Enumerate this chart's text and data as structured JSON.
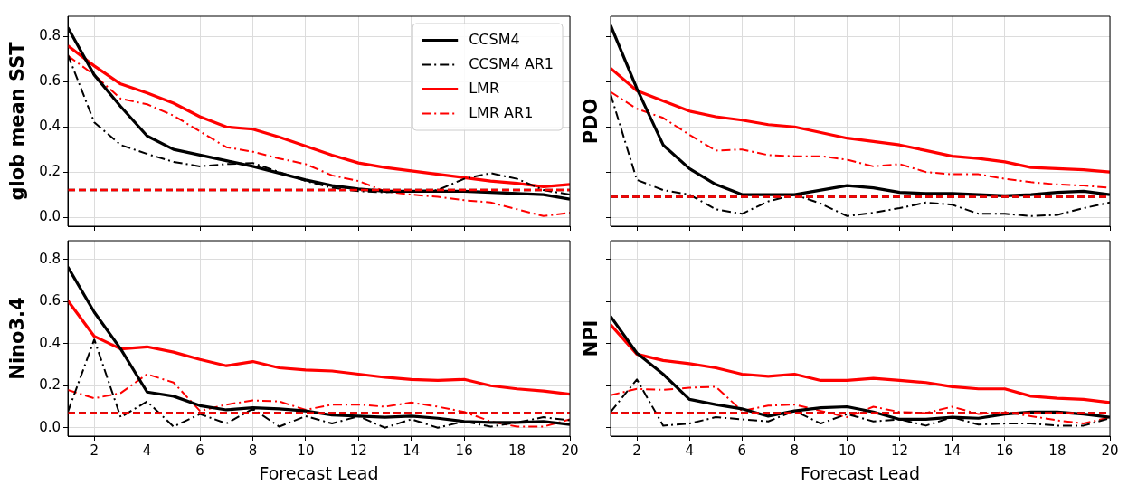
{
  "chart_data": [
    {
      "type": "line",
      "ylabel": "glob mean SST",
      "x": [
        1,
        2,
        3,
        4,
        5,
        6,
        7,
        8,
        9,
        10,
        11,
        12,
        13,
        14,
        15,
        16,
        17,
        18,
        19,
        20
      ],
      "xlim": [
        1,
        20
      ],
      "xticks": [
        2,
        4,
        6,
        8,
        10,
        12,
        14,
        16,
        18,
        20
      ],
      "ylim": [
        -0.04,
        0.89
      ],
      "yticks": [
        {
          "value": 0,
          "label": "0.0"
        },
        0.2,
        0.4,
        0.6,
        0.8
      ],
      "grid": true,
      "legend": "top right",
      "tick_labels": "y",
      "series": [
        {
          "name": "CCSM4",
          "color": "#000000",
          "line_style": "solid",
          "values": [
            0.84,
            0.63,
            0.49,
            0.36,
            0.3,
            0.275,
            0.25,
            0.225,
            0.195,
            0.165,
            0.14,
            0.125,
            0.115,
            0.115,
            0.115,
            0.115,
            0.11,
            0.105,
            0.1,
            0.08
          ]
        },
        {
          "name": "CCSM4 AR1",
          "color": "#000000",
          "line_style": "dashdot",
          "values": [
            0.72,
            0.42,
            0.32,
            0.28,
            0.245,
            0.225,
            0.235,
            0.24,
            0.2,
            0.16,
            0.13,
            0.115,
            0.11,
            0.115,
            0.12,
            0.17,
            0.195,
            0.17,
            0.12,
            0.1
          ]
        },
        {
          "name": "LMR",
          "color": "#ff0000",
          "line_style": "solid",
          "values": [
            0.76,
            0.67,
            0.59,
            0.55,
            0.505,
            0.445,
            0.4,
            0.39,
            0.355,
            0.315,
            0.275,
            0.24,
            0.22,
            0.205,
            0.19,
            0.175,
            0.16,
            0.15,
            0.135,
            0.145
          ]
        },
        {
          "name": "LMR AR1",
          "color": "#ff0000",
          "line_style": "dashdot",
          "values": [
            0.715,
            0.63,
            0.525,
            0.5,
            0.45,
            0.38,
            0.31,
            0.29,
            0.26,
            0.235,
            0.185,
            0.16,
            0.115,
            0.1,
            0.09,
            0.075,
            0.065,
            0.035,
            0.005,
            0.02
          ]
        }
      ],
      "ref_lines": [
        {
          "axis": "y",
          "value": 0.12,
          "color": "#000000",
          "line_style": "dashed"
        },
        {
          "axis": "y",
          "value": 0.12,
          "color": "#ff0000",
          "line_style": "dashed"
        }
      ]
    },
    {
      "type": "line",
      "ylabel": "PDO",
      "x": [
        1,
        2,
        3,
        4,
        5,
        6,
        7,
        8,
        9,
        10,
        11,
        12,
        13,
        14,
        15,
        16,
        17,
        18,
        19,
        20
      ],
      "xlim": [
        1,
        20
      ],
      "xticks": [
        2,
        4,
        6,
        8,
        10,
        12,
        14,
        16,
        18,
        20
      ],
      "ylim": [
        -0.04,
        0.89
      ],
      "yticks": [
        0,
        0.2,
        0.4,
        0.6,
        0.8
      ],
      "grid": true,
      "tick_labels": false,
      "series": [
        {
          "color": "#000000",
          "line_style": "solid",
          "values": [
            0.85,
            0.57,
            0.32,
            0.215,
            0.145,
            0.1,
            0.1,
            0.1,
            0.12,
            0.14,
            0.13,
            0.11,
            0.105,
            0.105,
            0.1,
            0.095,
            0.1,
            0.11,
            0.115,
            0.1
          ]
        },
        {
          "color": "#000000",
          "line_style": "dashdot",
          "values": [
            0.545,
            0.165,
            0.12,
            0.1,
            0.035,
            0.015,
            0.07,
            0.1,
            0.06,
            0.005,
            0.02,
            0.04,
            0.065,
            0.055,
            0.015,
            0.015,
            0.005,
            0.01,
            0.04,
            0.065
          ]
        },
        {
          "color": "#ff0000",
          "line_style": "solid",
          "values": [
            0.66,
            0.56,
            0.515,
            0.47,
            0.445,
            0.43,
            0.41,
            0.4,
            0.375,
            0.35,
            0.335,
            0.32,
            0.295,
            0.27,
            0.26,
            0.245,
            0.22,
            0.215,
            0.21,
            0.2
          ]
        },
        {
          "color": "#ff0000",
          "line_style": "dashdot",
          "values": [
            0.555,
            0.48,
            0.44,
            0.365,
            0.295,
            0.3,
            0.275,
            0.27,
            0.27,
            0.255,
            0.225,
            0.235,
            0.2,
            0.19,
            0.19,
            0.17,
            0.155,
            0.145,
            0.14,
            0.13
          ]
        }
      ],
      "ref_lines": [
        {
          "axis": "y",
          "value": 0.09,
          "color": "#000000",
          "line_style": "dashed"
        },
        {
          "axis": "y",
          "value": 0.09,
          "color": "#ff0000",
          "line_style": "dashed"
        }
      ]
    },
    {
      "type": "line",
      "ylabel": "Nino3.4",
      "xlabel": "Forecast Lead",
      "x": [
        1,
        2,
        3,
        4,
        5,
        6,
        7,
        8,
        9,
        10,
        11,
        12,
        13,
        14,
        15,
        16,
        17,
        18,
        19,
        20
      ],
      "xlim": [
        1,
        20
      ],
      "xticks": [
        2,
        4,
        6,
        8,
        10,
        12,
        14,
        16,
        18,
        20
      ],
      "ylim": [
        -0.04,
        0.89
      ],
      "yticks": [
        {
          "value": 0,
          "label": "0.0"
        },
        0.2,
        0.4,
        0.6,
        0.8
      ],
      "grid": true,
      "series": [
        {
          "color": "#000000",
          "line_style": "solid",
          "values": [
            0.765,
            0.55,
            0.375,
            0.17,
            0.15,
            0.105,
            0.085,
            0.095,
            0.09,
            0.08,
            0.06,
            0.055,
            0.05,
            0.055,
            0.045,
            0.03,
            0.025,
            0.025,
            0.03,
            0.015
          ]
        },
        {
          "color": "#000000",
          "line_style": "dashdot",
          "values": [
            0.075,
            0.42,
            0.05,
            0.125,
            0.005,
            0.065,
            0.02,
            0.09,
            0.005,
            0.055,
            0.02,
            0.055,
            0.0,
            0.04,
            0.0,
            0.03,
            0.005,
            0.025,
            0.05,
            0.035
          ]
        },
        {
          "color": "#ff0000",
          "line_style": "solid",
          "values": [
            0.605,
            0.435,
            0.375,
            0.385,
            0.36,
            0.325,
            0.295,
            0.315,
            0.285,
            0.275,
            0.27,
            0.255,
            0.24,
            0.23,
            0.225,
            0.23,
            0.2,
            0.185,
            0.175,
            0.16
          ]
        },
        {
          "color": "#ff0000",
          "line_style": "dashdot",
          "values": [
            0.18,
            0.14,
            0.165,
            0.255,
            0.215,
            0.08,
            0.11,
            0.13,
            0.125,
            0.085,
            0.11,
            0.11,
            0.1,
            0.12,
            0.1,
            0.075,
            0.03,
            0.005,
            0.005,
            0.04
          ]
        }
      ],
      "ref_lines": [
        {
          "axis": "y",
          "value": 0.07,
          "color": "#000000",
          "line_style": "dashed"
        },
        {
          "axis": "y",
          "value": 0.07,
          "color": "#ff0000",
          "line_style": "dashed"
        }
      ]
    },
    {
      "type": "line",
      "ylabel": "NPI",
      "xlabel": "Forecast Lead",
      "x": [
        1,
        2,
        3,
        4,
        5,
        6,
        7,
        8,
        9,
        10,
        11,
        12,
        13,
        14,
        15,
        16,
        17,
        18,
        19,
        20
      ],
      "xlim": [
        1,
        20
      ],
      "xticks": [
        2,
        4,
        6,
        8,
        10,
        12,
        14,
        16,
        18,
        20
      ],
      "ylim": [
        -0.04,
        0.89
      ],
      "yticks": [
        0,
        0.2,
        0.4,
        0.6,
        0.8
      ],
      "grid": true,
      "tick_labels": "x",
      "series": [
        {
          "color": "#000000",
          "line_style": "solid",
          "values": [
            0.53,
            0.355,
            0.255,
            0.135,
            0.11,
            0.09,
            0.055,
            0.08,
            0.095,
            0.1,
            0.075,
            0.04,
            0.04,
            0.05,
            0.045,
            0.065,
            0.075,
            0.075,
            0.065,
            0.05
          ]
        },
        {
          "color": "#000000",
          "line_style": "dashdot",
          "values": [
            0.075,
            0.23,
            0.01,
            0.02,
            0.05,
            0.04,
            0.03,
            0.08,
            0.02,
            0.065,
            0.03,
            0.04,
            0.01,
            0.05,
            0.015,
            0.02,
            0.02,
            0.01,
            0.01,
            0.045
          ]
        },
        {
          "color": "#ff0000",
          "line_style": "solid",
          "values": [
            0.49,
            0.35,
            0.32,
            0.305,
            0.285,
            0.255,
            0.245,
            0.255,
            0.225,
            0.225,
            0.235,
            0.225,
            0.215,
            0.195,
            0.185,
            0.185,
            0.15,
            0.14,
            0.135,
            0.12
          ]
        },
        {
          "color": "#ff0000",
          "line_style": "dashdot",
          "values": [
            0.155,
            0.185,
            0.18,
            0.19,
            0.195,
            0.08,
            0.105,
            0.11,
            0.08,
            0.05,
            0.1,
            0.075,
            0.07,
            0.1,
            0.065,
            0.075,
            0.055,
            0.035,
            0.02,
            0.05
          ]
        }
      ],
      "ref_lines": [
        {
          "axis": "y",
          "value": 0.07,
          "color": "#000000",
          "line_style": "dashed"
        },
        {
          "axis": "y",
          "value": 0.07,
          "color": "#ff0000",
          "line_style": "dashed"
        }
      ]
    }
  ]
}
